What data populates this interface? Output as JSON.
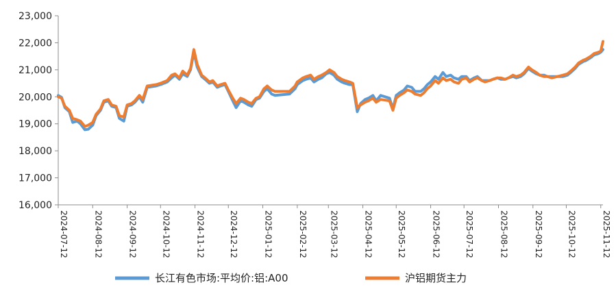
{
  "chart_data": {
    "type": "line",
    "title": "",
    "xlabel": "",
    "ylabel": "",
    "ylim": [
      16000,
      23000
    ],
    "yticks": [
      16000,
      17000,
      18000,
      19000,
      20000,
      21000,
      22000,
      23000
    ],
    "ytick_labels": [
      "16,000",
      "17,000",
      "18,000",
      "19,000",
      "20,000",
      "21,000",
      "22,000",
      "23,000"
    ],
    "xlim": [
      "2024-07-12",
      "2025-11-14"
    ],
    "xticks": [
      "2024-07-12",
      "2024-08-12",
      "2024-09-12",
      "2024-10-12",
      "2024-11-12",
      "2024-12-12",
      "2025-01-12",
      "2025-02-12",
      "2025-03-12",
      "2025-04-12",
      "2025-05-12",
      "2025-06-12",
      "2025-07-12",
      "2025-08-12",
      "2025-09-12",
      "2025-10-12",
      "2025-11-12"
    ],
    "grid": false,
    "legend_position": "bottom",
    "series": [
      {
        "name": "长江有色市场:平均价:铝:A00",
        "color": "#5b9bd5",
        "points": [
          [
            "2024-07-12",
            20050
          ],
          [
            "2024-07-15",
            19980
          ],
          [
            "2024-07-18",
            19600
          ],
          [
            "2024-07-22",
            19450
          ],
          [
            "2024-07-25",
            19050
          ],
          [
            "2024-07-29",
            19100
          ],
          [
            "2024-08-01",
            19000
          ],
          [
            "2024-08-05",
            18780
          ],
          [
            "2024-08-08",
            18800
          ],
          [
            "2024-08-12",
            18950
          ],
          [
            "2024-08-15",
            19300
          ],
          [
            "2024-08-19",
            19500
          ],
          [
            "2024-08-22",
            19800
          ],
          [
            "2024-08-26",
            19850
          ],
          [
            "2024-08-29",
            19650
          ],
          [
            "2024-09-02",
            19600
          ],
          [
            "2024-09-05",
            19200
          ],
          [
            "2024-09-09",
            19100
          ],
          [
            "2024-09-12",
            19650
          ],
          [
            "2024-09-16",
            19700
          ],
          [
            "2024-09-19",
            19800
          ],
          [
            "2024-09-23",
            20000
          ],
          [
            "2024-09-26",
            19800
          ],
          [
            "2024-09-30",
            20350
          ],
          [
            "2024-10-08",
            20400
          ],
          [
            "2024-10-12",
            20450
          ],
          [
            "2024-10-15",
            20500
          ],
          [
            "2024-10-18",
            20550
          ],
          [
            "2024-10-22",
            20700
          ],
          [
            "2024-10-25",
            20800
          ],
          [
            "2024-10-29",
            20650
          ],
          [
            "2024-11-01",
            20850
          ],
          [
            "2024-11-05",
            20750
          ],
          [
            "2024-11-08",
            21000
          ],
          [
            "2024-11-11",
            21650
          ],
          [
            "2024-11-14",
            21100
          ],
          [
            "2024-11-18",
            20750
          ],
          [
            "2024-11-21",
            20650
          ],
          [
            "2024-11-25",
            20500
          ],
          [
            "2024-11-28",
            20550
          ],
          [
            "2024-12-02",
            20350
          ],
          [
            "2024-12-05",
            20400
          ],
          [
            "2024-12-09",
            20450
          ],
          [
            "2024-12-12",
            20200
          ],
          [
            "2024-12-16",
            19850
          ],
          [
            "2024-12-19",
            19600
          ],
          [
            "2024-12-23",
            19850
          ],
          [
            "2024-12-26",
            19800
          ],
          [
            "2024-12-30",
            19700
          ],
          [
            "2025-01-02",
            19650
          ],
          [
            "2025-01-06",
            19900
          ],
          [
            "2025-01-09",
            19950
          ],
          [
            "2025-01-13",
            20200
          ],
          [
            "2025-01-16",
            20300
          ],
          [
            "2025-01-20",
            20100
          ],
          [
            "2025-01-23",
            20050
          ],
          [
            "2025-02-05",
            20100
          ],
          [
            "2025-02-10",
            20300
          ],
          [
            "2025-02-12",
            20450
          ],
          [
            "2025-02-17",
            20600
          ],
          [
            "2025-02-20",
            20650
          ],
          [
            "2025-02-24",
            20700
          ],
          [
            "2025-02-27",
            20550
          ],
          [
            "2025-03-03",
            20650
          ],
          [
            "2025-03-06",
            20700
          ],
          [
            "2025-03-10",
            20850
          ],
          [
            "2025-03-13",
            20900
          ],
          [
            "2025-03-17",
            20800
          ],
          [
            "2025-03-20",
            20650
          ],
          [
            "2025-03-24",
            20550
          ],
          [
            "2025-03-27",
            20500
          ],
          [
            "2025-03-31",
            20450
          ],
          [
            "2025-04-03",
            20450
          ],
          [
            "2025-04-07",
            19450
          ],
          [
            "2025-04-10",
            19750
          ],
          [
            "2025-04-14",
            19900
          ],
          [
            "2025-04-17",
            19950
          ],
          [
            "2025-04-21",
            20050
          ],
          [
            "2025-04-24",
            19850
          ],
          [
            "2025-04-28",
            20050
          ],
          [
            "2025-05-06",
            19950
          ],
          [
            "2025-05-09",
            19550
          ],
          [
            "2025-05-12",
            20050
          ],
          [
            "2025-05-15",
            20150
          ],
          [
            "2025-05-19",
            20250
          ],
          [
            "2025-05-22",
            20400
          ],
          [
            "2025-05-26",
            20350
          ],
          [
            "2025-05-29",
            20200
          ],
          [
            "2025-06-03",
            20200
          ],
          [
            "2025-06-06",
            20300
          ],
          [
            "2025-06-09",
            20450
          ],
          [
            "2025-06-12",
            20550
          ],
          [
            "2025-06-16",
            20750
          ],
          [
            "2025-06-19",
            20650
          ],
          [
            "2025-06-23",
            20900
          ],
          [
            "2025-06-26",
            20750
          ],
          [
            "2025-06-30",
            20800
          ],
          [
            "2025-07-03",
            20700
          ],
          [
            "2025-07-07",
            20650
          ],
          [
            "2025-07-10",
            20750
          ],
          [
            "2025-07-14",
            20750
          ],
          [
            "2025-07-17",
            20600
          ],
          [
            "2025-07-21",
            20700
          ],
          [
            "2025-07-24",
            20750
          ],
          [
            "2025-07-28",
            20600
          ],
          [
            "2025-07-31",
            20600
          ],
          [
            "2025-08-04",
            20600
          ],
          [
            "2025-08-07",
            20650
          ],
          [
            "2025-08-11",
            20700
          ],
          [
            "2025-08-14",
            20650
          ],
          [
            "2025-08-18",
            20650
          ],
          [
            "2025-08-21",
            20700
          ],
          [
            "2025-08-25",
            20750
          ],
          [
            "2025-08-28",
            20700
          ],
          [
            "2025-09-01",
            20750
          ],
          [
            "2025-09-04",
            20850
          ],
          [
            "2025-09-08",
            21050
          ],
          [
            "2025-09-11",
            20950
          ],
          [
            "2025-09-15",
            20850
          ],
          [
            "2025-09-18",
            20800
          ],
          [
            "2025-09-22",
            20800
          ],
          [
            "2025-09-25",
            20750
          ],
          [
            "2025-09-29",
            20750
          ],
          [
            "2025-10-09",
            20750
          ],
          [
            "2025-10-13",
            20800
          ],
          [
            "2025-10-16",
            20900
          ],
          [
            "2025-10-20",
            21050
          ],
          [
            "2025-10-23",
            21200
          ],
          [
            "2025-10-27",
            21300
          ],
          [
            "2025-10-30",
            21350
          ],
          [
            "2025-11-03",
            21450
          ],
          [
            "2025-11-06",
            21550
          ],
          [
            "2025-11-10",
            21600
          ],
          [
            "2025-11-12",
            21650
          ],
          [
            "2025-11-14",
            21750
          ]
        ]
      },
      {
        "name": "沪铝期货主力",
        "color": "#ed7d31",
        "points": [
          [
            "2024-07-12",
            20000
          ],
          [
            "2024-07-15",
            19950
          ],
          [
            "2024-07-18",
            19650
          ],
          [
            "2024-07-22",
            19500
          ],
          [
            "2024-07-25",
            19200
          ],
          [
            "2024-07-29",
            19150
          ],
          [
            "2024-08-01",
            19100
          ],
          [
            "2024-08-05",
            18900
          ],
          [
            "2024-08-08",
            18950
          ],
          [
            "2024-08-12",
            19050
          ],
          [
            "2024-08-15",
            19350
          ],
          [
            "2024-08-19",
            19550
          ],
          [
            "2024-08-22",
            19850
          ],
          [
            "2024-08-26",
            19900
          ],
          [
            "2024-08-29",
            19700
          ],
          [
            "2024-09-02",
            19650
          ],
          [
            "2024-09-05",
            19300
          ],
          [
            "2024-09-09",
            19250
          ],
          [
            "2024-09-12",
            19700
          ],
          [
            "2024-09-16",
            19750
          ],
          [
            "2024-09-19",
            19850
          ],
          [
            "2024-09-23",
            20050
          ],
          [
            "2024-09-26",
            19900
          ],
          [
            "2024-09-30",
            20400
          ],
          [
            "2024-10-08",
            20450
          ],
          [
            "2024-10-12",
            20500
          ],
          [
            "2024-10-15",
            20550
          ],
          [
            "2024-10-18",
            20600
          ],
          [
            "2024-10-22",
            20800
          ],
          [
            "2024-10-25",
            20850
          ],
          [
            "2024-10-29",
            20700
          ],
          [
            "2024-11-01",
            20950
          ],
          [
            "2024-11-05",
            20800
          ],
          [
            "2024-11-08",
            21050
          ],
          [
            "2024-11-11",
            21750
          ],
          [
            "2024-11-14",
            21200
          ],
          [
            "2024-11-18",
            20800
          ],
          [
            "2024-11-21",
            20700
          ],
          [
            "2024-11-25",
            20550
          ],
          [
            "2024-11-28",
            20600
          ],
          [
            "2024-12-02",
            20400
          ],
          [
            "2024-12-05",
            20450
          ],
          [
            "2024-12-09",
            20500
          ],
          [
            "2024-12-12",
            20250
          ],
          [
            "2024-12-16",
            19950
          ],
          [
            "2024-12-19",
            19750
          ],
          [
            "2024-12-23",
            19950
          ],
          [
            "2024-12-26",
            19900
          ],
          [
            "2024-12-30",
            19800
          ],
          [
            "2025-01-02",
            19750
          ],
          [
            "2025-01-06",
            19950
          ],
          [
            "2025-01-09",
            20000
          ],
          [
            "2025-01-13",
            20300
          ],
          [
            "2025-01-16",
            20400
          ],
          [
            "2025-01-20",
            20250
          ],
          [
            "2025-01-23",
            20200
          ],
          [
            "2025-02-05",
            20200
          ],
          [
            "2025-02-10",
            20400
          ],
          [
            "2025-02-12",
            20550
          ],
          [
            "2025-02-17",
            20700
          ],
          [
            "2025-02-20",
            20750
          ],
          [
            "2025-02-24",
            20800
          ],
          [
            "2025-02-27",
            20650
          ],
          [
            "2025-03-03",
            20750
          ],
          [
            "2025-03-06",
            20800
          ],
          [
            "2025-03-10",
            20900
          ],
          [
            "2025-03-13",
            21000
          ],
          [
            "2025-03-17",
            20900
          ],
          [
            "2025-03-20",
            20750
          ],
          [
            "2025-03-24",
            20650
          ],
          [
            "2025-03-27",
            20600
          ],
          [
            "2025-03-31",
            20550
          ],
          [
            "2025-04-03",
            20500
          ],
          [
            "2025-04-07",
            19600
          ],
          [
            "2025-04-10",
            19700
          ],
          [
            "2025-04-14",
            19800
          ],
          [
            "2025-04-17",
            19850
          ],
          [
            "2025-04-21",
            19950
          ],
          [
            "2025-04-24",
            19800
          ],
          [
            "2025-04-28",
            19900
          ],
          [
            "2025-05-06",
            19850
          ],
          [
            "2025-05-09",
            19500
          ],
          [
            "2025-05-12",
            19950
          ],
          [
            "2025-05-15",
            20050
          ],
          [
            "2025-05-19",
            20150
          ],
          [
            "2025-05-22",
            20250
          ],
          [
            "2025-05-26",
            20200
          ],
          [
            "2025-05-29",
            20100
          ],
          [
            "2025-06-03",
            20050
          ],
          [
            "2025-06-06",
            20150
          ],
          [
            "2025-06-09",
            20300
          ],
          [
            "2025-06-12",
            20400
          ],
          [
            "2025-06-16",
            20600
          ],
          [
            "2025-06-19",
            20500
          ],
          [
            "2025-06-23",
            20700
          ],
          [
            "2025-06-26",
            20600
          ],
          [
            "2025-06-30",
            20650
          ],
          [
            "2025-07-03",
            20550
          ],
          [
            "2025-07-07",
            20500
          ],
          [
            "2025-07-10",
            20650
          ],
          [
            "2025-07-14",
            20700
          ],
          [
            "2025-07-17",
            20550
          ],
          [
            "2025-07-21",
            20650
          ],
          [
            "2025-07-24",
            20700
          ],
          [
            "2025-07-28",
            20600
          ],
          [
            "2025-07-31",
            20550
          ],
          [
            "2025-08-04",
            20600
          ],
          [
            "2025-08-07",
            20650
          ],
          [
            "2025-08-11",
            20700
          ],
          [
            "2025-08-14",
            20700
          ],
          [
            "2025-08-18",
            20650
          ],
          [
            "2025-08-21",
            20700
          ],
          [
            "2025-08-25",
            20800
          ],
          [
            "2025-08-28",
            20750
          ],
          [
            "2025-09-01",
            20800
          ],
          [
            "2025-09-04",
            20900
          ],
          [
            "2025-09-08",
            21100
          ],
          [
            "2025-09-11",
            21000
          ],
          [
            "2025-09-15",
            20900
          ],
          [
            "2025-09-18",
            20800
          ],
          [
            "2025-09-22",
            20750
          ],
          [
            "2025-09-25",
            20750
          ],
          [
            "2025-09-29",
            20700
          ],
          [
            "2025-10-09",
            20800
          ],
          [
            "2025-10-13",
            20850
          ],
          [
            "2025-10-16",
            20950
          ],
          [
            "2025-10-20",
            21100
          ],
          [
            "2025-10-23",
            21250
          ],
          [
            "2025-10-27",
            21350
          ],
          [
            "2025-10-30",
            21400
          ],
          [
            "2025-11-03",
            21500
          ],
          [
            "2025-11-06",
            21600
          ],
          [
            "2025-11-10",
            21650
          ],
          [
            "2025-11-12",
            21700
          ],
          [
            "2025-11-14",
            22050
          ]
        ]
      }
    ]
  }
}
